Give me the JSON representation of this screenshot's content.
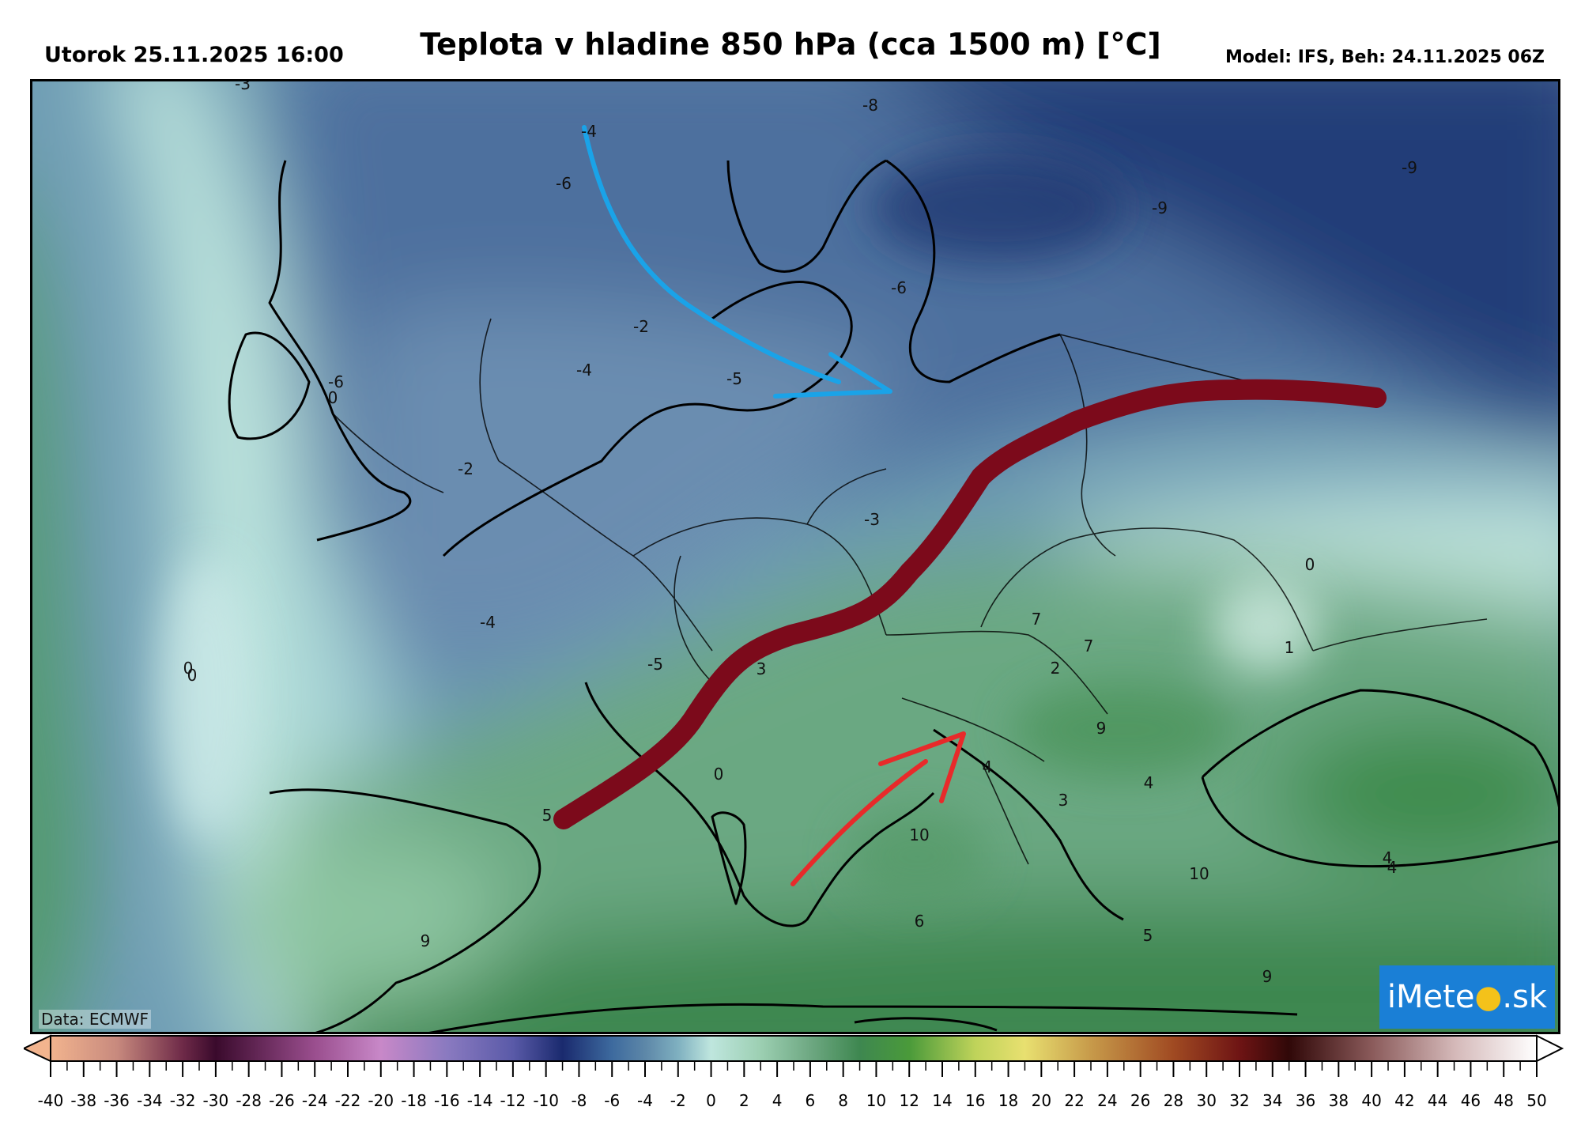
{
  "header": {
    "valid_time": "Utorok 25.11.2025 16:00",
    "title": "Teplota v hladine 850 hPa (cca 1500 m) [°C]",
    "model_run": "Model: IFS, Beh: 24.11.2025 06Z"
  },
  "map": {
    "credit": "Data: ECMWF",
    "logo": {
      "text_a": "iMete",
      "text_dot": "●",
      "text_b": ".sk"
    },
    "contour_labels": [
      {
        "text": "-3"
      },
      {
        "text": "-4"
      },
      {
        "text": "-6"
      },
      {
        "text": "-8"
      },
      {
        "text": "-9"
      },
      {
        "text": "-9"
      },
      {
        "text": "-6"
      },
      {
        "text": "-2"
      },
      {
        "text": "-4"
      },
      {
        "text": "-5"
      },
      {
        "text": "0"
      },
      {
        "text": "-6"
      },
      {
        "text": "-2"
      },
      {
        "text": "-3"
      },
      {
        "text": "0"
      },
      {
        "text": "0"
      },
      {
        "text": "0"
      },
      {
        "text": "-4"
      },
      {
        "text": "-5"
      },
      {
        "text": "3"
      },
      {
        "text": "7"
      },
      {
        "text": "2"
      },
      {
        "text": "7"
      },
      {
        "text": "9"
      },
      {
        "text": "0"
      },
      {
        "text": "4"
      },
      {
        "text": "3"
      },
      {
        "text": "4"
      },
      {
        "text": "10"
      },
      {
        "text": "5"
      },
      {
        "text": "6"
      },
      {
        "text": "9"
      },
      {
        "text": "10"
      },
      {
        "text": "4"
      },
      {
        "text": "4"
      },
      {
        "text": "5"
      },
      {
        "text": "9"
      },
      {
        "text": "1"
      }
    ],
    "annotations": {
      "front_color": "#7c0a1b",
      "cold_arrow_color": "#1aa3e8",
      "warm_arrow_color": "#e82a2a"
    }
  },
  "colorbar": {
    "tick_labels": [
      "-40",
      "-38",
      "-36",
      "-34",
      "-32",
      "-30",
      "-28",
      "-26",
      "-24",
      "-22",
      "-20",
      "-18",
      "-16",
      "-14",
      "-12",
      "-10",
      "-8",
      "-6",
      "-4",
      "-2",
      "0",
      "2",
      "4",
      "6",
      "8",
      "10",
      "12",
      "14",
      "16",
      "18",
      "20",
      "22",
      "24",
      "26",
      "28",
      "30",
      "32",
      "34",
      "36",
      "38",
      "40",
      "42",
      "44",
      "46",
      "48",
      "50"
    ],
    "stops": [
      {
        "v": -40,
        "c": "#f2b48e"
      },
      {
        "v": -36,
        "c": "#c88a7e"
      },
      {
        "v": -32,
        "c": "#6e2a48"
      },
      {
        "v": -30,
        "c": "#3a0a2c"
      },
      {
        "v": -24,
        "c": "#9a4e8e"
      },
      {
        "v": -20,
        "c": "#c888c8"
      },
      {
        "v": -16,
        "c": "#8a7ac0"
      },
      {
        "v": -12,
        "c": "#5a5aa8"
      },
      {
        "v": -9,
        "c": "#1a2a6e"
      },
      {
        "v": -6,
        "c": "#3d6a9e"
      },
      {
        "v": -4,
        "c": "#5d87a8"
      },
      {
        "v": -2,
        "c": "#7fb0c0"
      },
      {
        "v": 0,
        "c": "#bfe6de"
      },
      {
        "v": 3,
        "c": "#9ccfb2"
      },
      {
        "v": 6,
        "c": "#6ea882"
      },
      {
        "v": 9,
        "c": "#3e8750"
      },
      {
        "v": 12,
        "c": "#4a9a3a"
      },
      {
        "v": 16,
        "c": "#bfd35a"
      },
      {
        "v": 19,
        "c": "#e8e070"
      },
      {
        "v": 23,
        "c": "#c79a4a"
      },
      {
        "v": 28,
        "c": "#a04a22"
      },
      {
        "v": 32,
        "c": "#6e1414"
      },
      {
        "v": 35,
        "c": "#300808"
      },
      {
        "v": 40,
        "c": "#8a5a5a"
      },
      {
        "v": 45,
        "c": "#d4b8b8"
      },
      {
        "v": 50,
        "c": "#ffffff"
      }
    ]
  }
}
